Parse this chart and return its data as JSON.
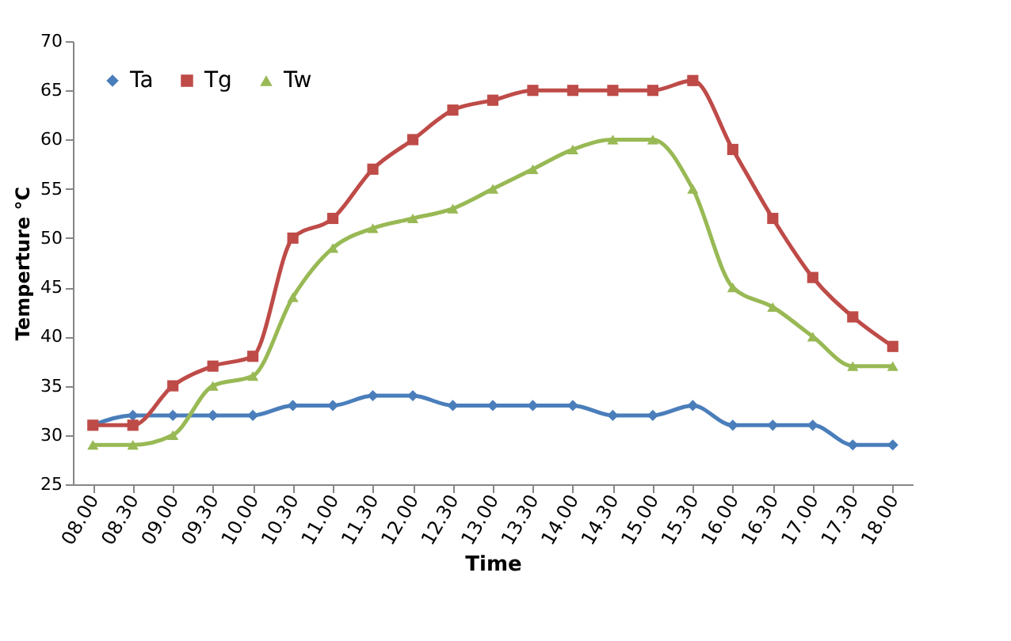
{
  "chart_data": {
    "type": "line",
    "xlabel": "Time",
    "ylabel": "Temperture °C",
    "categories": [
      "08.00",
      "08.30",
      "09.00",
      "09.30",
      "10.00",
      "10.30",
      "11.00",
      "11.30",
      "12.00",
      "12.30",
      "13.00",
      "13.30",
      "14.00",
      "14.30",
      "15.00",
      "15.30",
      "16.00",
      "16.30",
      "17.00",
      "17.30",
      "18.00"
    ],
    "series": [
      {
        "name": "Ta",
        "color": "#4a7ebb",
        "marker": "diamond",
        "values": [
          31,
          32,
          32,
          32,
          32,
          33,
          33,
          34,
          34,
          33,
          33,
          33,
          33,
          32,
          32,
          33,
          31,
          31,
          31,
          29,
          29
        ]
      },
      {
        "name": "Tg",
        "color": "#be4b48",
        "marker": "square",
        "values": [
          31,
          31,
          35,
          37,
          38,
          50,
          52,
          57,
          60,
          63,
          64,
          65,
          65,
          65,
          65,
          66,
          59,
          52,
          46,
          42,
          39
        ]
      },
      {
        "name": "Tw",
        "color": "#98b954",
        "marker": "triangle",
        "values": [
          29,
          29,
          30,
          35,
          36,
          44,
          49,
          51,
          52,
          53,
          55,
          57,
          59,
          60,
          60,
          55,
          45,
          43,
          40,
          37,
          37
        ]
      }
    ],
    "ylim": [
      25,
      70
    ],
    "yticks": [
      25,
      30,
      35,
      40,
      45,
      50,
      55,
      60,
      65,
      70
    ],
    "grid": false,
    "legend": "top left",
    "line_style": "solid"
  }
}
